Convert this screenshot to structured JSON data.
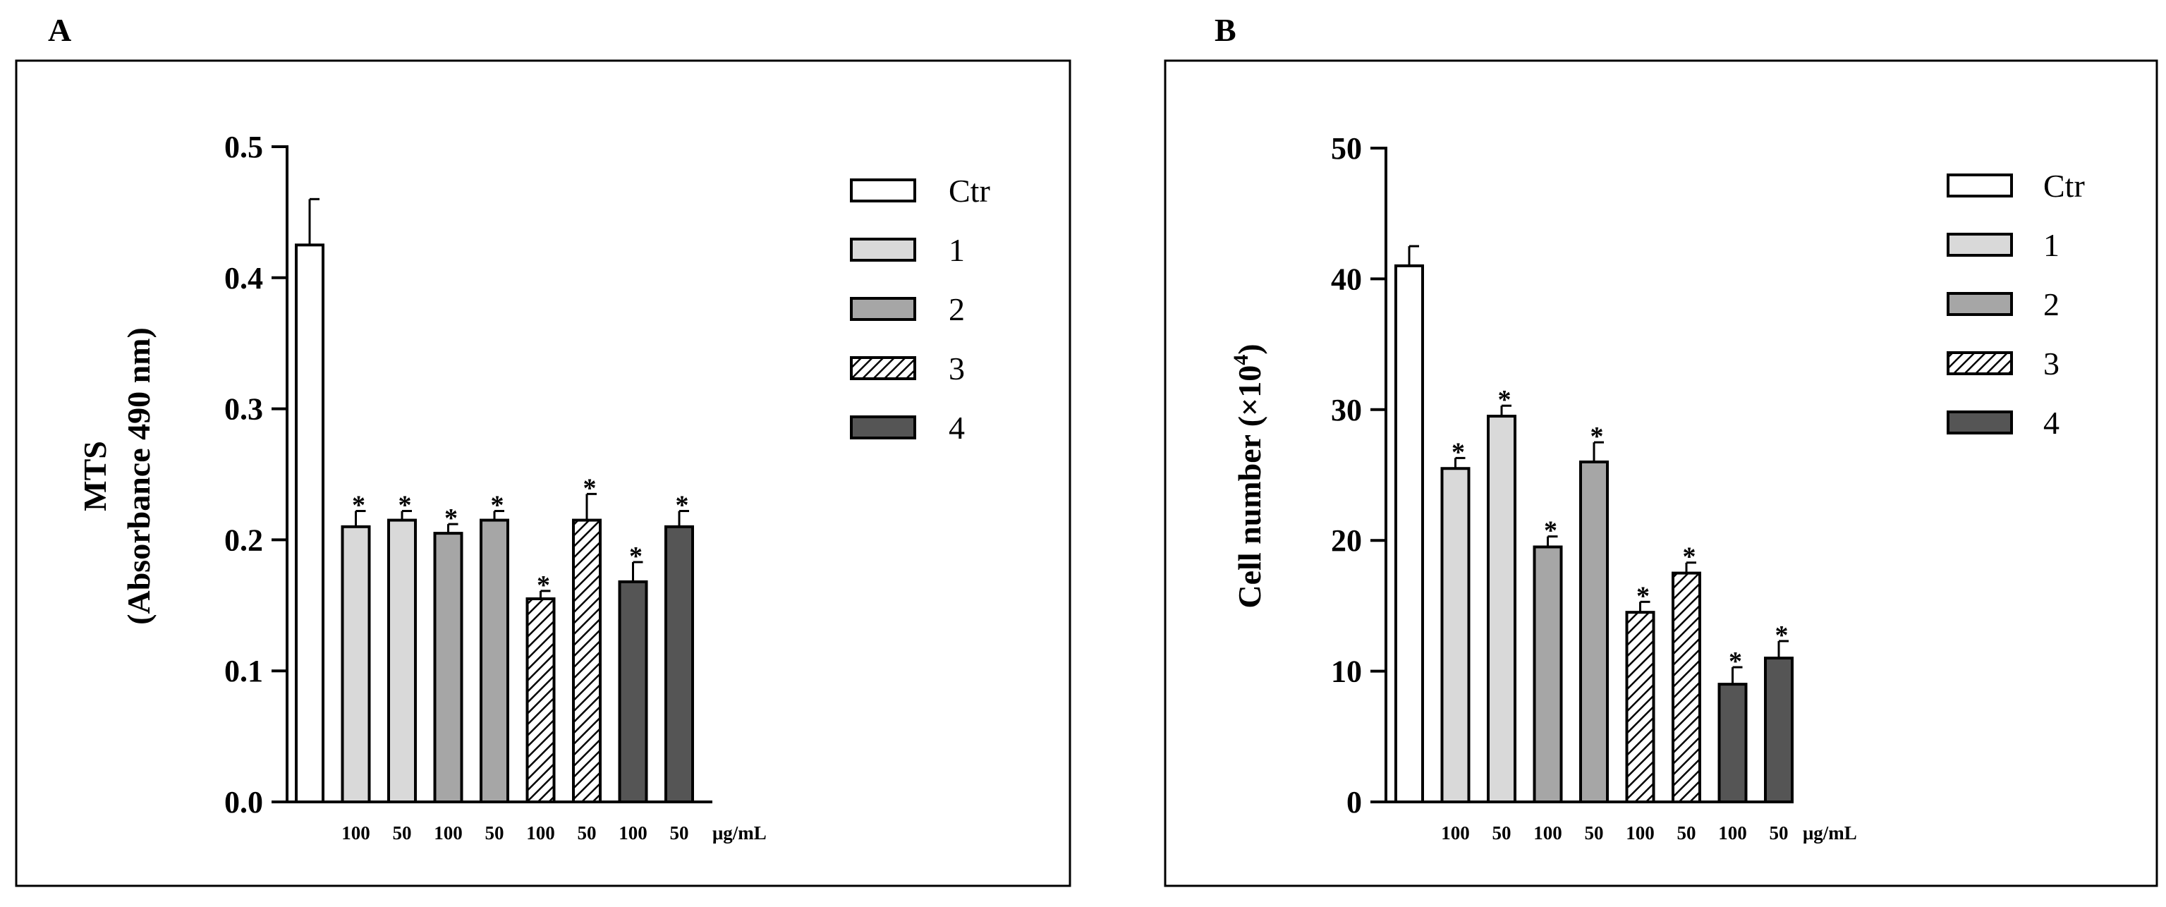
{
  "panels": [
    {
      "letter": "A",
      "chart_data": {
        "type": "bar",
        "title": "",
        "ylabel_line1": "MTS",
        "ylabel_line2": "(Absorbance 490 nm)",
        "xlabel": "",
        "ylim": [
          0,
          0.5
        ],
        "yticks": [
          "0.0",
          "0.1",
          "0.2",
          "0.3",
          "0.4",
          "0.5"
        ],
        "unit_label": "μg/mL",
        "categories": [
          "",
          "100",
          "50",
          "100",
          "50",
          "100",
          "50",
          "100",
          "50"
        ],
        "groups": [
          "Ctr",
          "1",
          "1",
          "2",
          "2",
          "3",
          "3",
          "4",
          "4"
        ],
        "values": [
          0.425,
          0.21,
          0.215,
          0.205,
          0.215,
          0.155,
          0.215,
          0.168,
          0.21
        ],
        "errors": [
          0.035,
          0.012,
          0.007,
          0.007,
          0.007,
          0.006,
          0.02,
          0.015,
          0.012
        ],
        "significant": [
          false,
          true,
          true,
          true,
          true,
          true,
          true,
          true,
          true
        ],
        "star_label": "*"
      }
    },
    {
      "letter": "B",
      "chart_data": {
        "type": "bar",
        "title": "",
        "ylabel": "Cell number (×10",
        "ylabel_sup": "4",
        "ylabel_end": ")",
        "xlabel": "",
        "ylim": [
          0,
          50
        ],
        "yticks": [
          "0",
          "10",
          "20",
          "30",
          "40",
          "50"
        ],
        "unit_label": "μg/mL",
        "categories": [
          "",
          "100",
          "50",
          "100",
          "50",
          "100",
          "50",
          "100",
          "50"
        ],
        "groups": [
          "Ctr",
          "1",
          "1",
          "2",
          "2",
          "3",
          "3",
          "4",
          "4"
        ],
        "values": [
          41,
          25.5,
          29.5,
          19.5,
          26,
          14.5,
          17.5,
          9,
          11
        ],
        "errors": [
          1.5,
          0.8,
          0.8,
          0.8,
          1.5,
          0.8,
          0.8,
          1.3,
          1.3
        ],
        "significant": [
          false,
          true,
          true,
          true,
          true,
          true,
          true,
          true,
          true
        ],
        "star_label": "*"
      }
    }
  ],
  "legend": [
    {
      "label": "Ctr",
      "style": "white"
    },
    {
      "label": "1",
      "style": "light"
    },
    {
      "label": "2",
      "style": "mid"
    },
    {
      "label": "3",
      "style": "hatch"
    },
    {
      "label": "4",
      "style": "dark"
    }
  ],
  "colors": {
    "white": "#ffffff",
    "light": "#d9d9d9",
    "mid": "#a6a6a6",
    "dark": "#555555",
    "stroke": "#000000"
  }
}
